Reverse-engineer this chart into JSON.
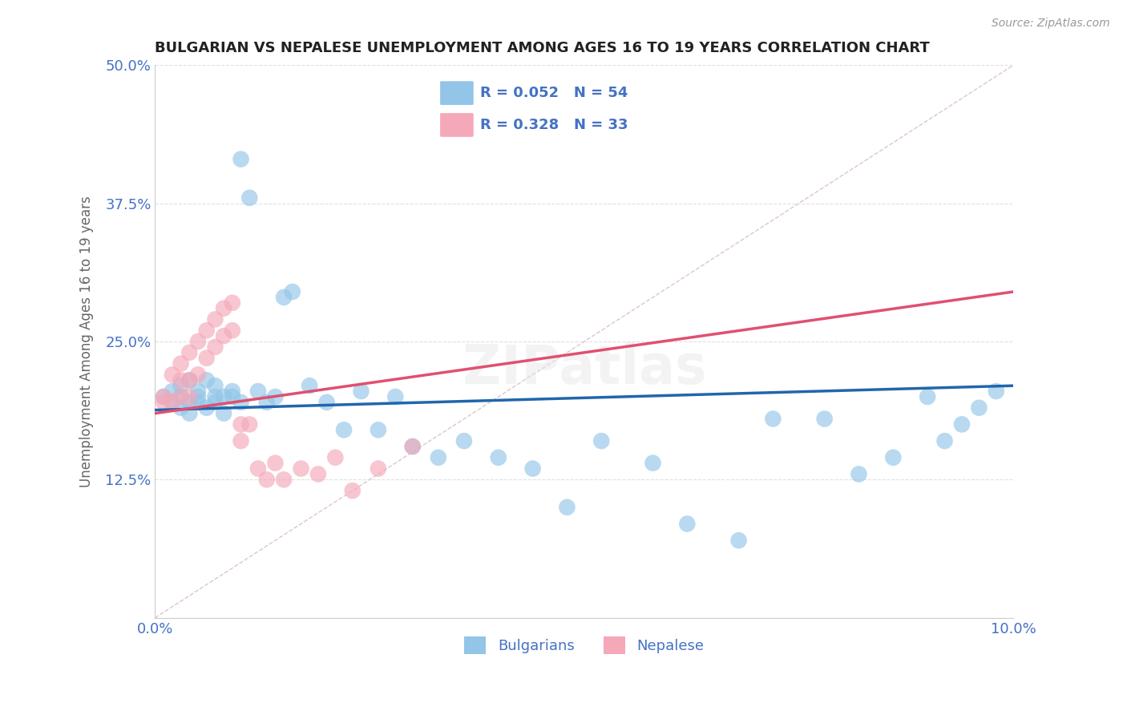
{
  "title": "BULGARIAN VS NEPALESE UNEMPLOYMENT AMONG AGES 16 TO 19 YEARS CORRELATION CHART",
  "source": "Source: ZipAtlas.com",
  "ylabel": "Unemployment Among Ages 16 to 19 years",
  "xlim": [
    0.0,
    0.1
  ],
  "ylim": [
    0.0,
    0.5
  ],
  "xticks": [
    0.0,
    0.025,
    0.05,
    0.075,
    0.1
  ],
  "xtick_labels": [
    "0.0%",
    "",
    "",
    "",
    "10.0%"
  ],
  "yticks": [
    0.0,
    0.125,
    0.25,
    0.375,
    0.5
  ],
  "ytick_labels": [
    "",
    "12.5%",
    "25.0%",
    "37.5%",
    "50.0%"
  ],
  "bulgarian_R": 0.052,
  "bulgarian_N": 54,
  "nepalese_R": 0.328,
  "nepalese_N": 33,
  "bulgarian_color": "#92c5e8",
  "nepalese_color": "#f4a8b8",
  "bulgarian_line_color": "#2166ac",
  "nepalese_line_color": "#e05070",
  "diagonal_color": "#d8c0c8",
  "background_color": "#ffffff",
  "title_color": "#222222",
  "axis_label_color": "#666666",
  "tick_color": "#4472c4",
  "grid_color": "#e0e0e0",
  "legend_R_color": "#4472c4",
  "bulgarians_x": [
    0.001,
    0.002,
    0.002,
    0.003,
    0.003,
    0.003,
    0.004,
    0.004,
    0.004,
    0.005,
    0.005,
    0.005,
    0.006,
    0.006,
    0.007,
    0.007,
    0.007,
    0.008,
    0.008,
    0.009,
    0.009,
    0.01,
    0.01,
    0.011,
    0.012,
    0.013,
    0.014,
    0.015,
    0.016,
    0.018,
    0.02,
    0.022,
    0.024,
    0.026,
    0.028,
    0.03,
    0.033,
    0.036,
    0.04,
    0.044,
    0.048,
    0.052,
    0.058,
    0.062,
    0.068,
    0.072,
    0.078,
    0.082,
    0.086,
    0.09,
    0.092,
    0.094,
    0.096,
    0.098
  ],
  "bulgarians_y": [
    0.2,
    0.195,
    0.205,
    0.19,
    0.21,
    0.2,
    0.185,
    0.215,
    0.195,
    0.2,
    0.205,
    0.195,
    0.215,
    0.19,
    0.2,
    0.21,
    0.195,
    0.2,
    0.185,
    0.205,
    0.2,
    0.415,
    0.195,
    0.38,
    0.205,
    0.195,
    0.2,
    0.29,
    0.295,
    0.21,
    0.195,
    0.17,
    0.205,
    0.17,
    0.2,
    0.155,
    0.145,
    0.16,
    0.145,
    0.135,
    0.1,
    0.16,
    0.14,
    0.085,
    0.07,
    0.18,
    0.18,
    0.13,
    0.145,
    0.2,
    0.16,
    0.175,
    0.19,
    0.205
  ],
  "nepalese_x": [
    0.001,
    0.001,
    0.002,
    0.002,
    0.003,
    0.003,
    0.003,
    0.004,
    0.004,
    0.004,
    0.005,
    0.005,
    0.006,
    0.006,
    0.007,
    0.007,
    0.008,
    0.008,
    0.009,
    0.009,
    0.01,
    0.01,
    0.011,
    0.012,
    0.013,
    0.014,
    0.015,
    0.017,
    0.019,
    0.021,
    0.023,
    0.026,
    0.03
  ],
  "nepalese_y": [
    0.2,
    0.195,
    0.22,
    0.195,
    0.23,
    0.215,
    0.2,
    0.24,
    0.215,
    0.2,
    0.25,
    0.22,
    0.26,
    0.235,
    0.27,
    0.245,
    0.28,
    0.255,
    0.285,
    0.26,
    0.175,
    0.16,
    0.175,
    0.135,
    0.125,
    0.14,
    0.125,
    0.135,
    0.13,
    0.145,
    0.115,
    0.135,
    0.155
  ],
  "bulg_trend_x": [
    0.0,
    0.1
  ],
  "bulg_trend_y": [
    0.188,
    0.21
  ],
  "nep_trend_x": [
    0.0,
    0.1
  ],
  "nep_trend_y": [
    0.185,
    0.295
  ]
}
